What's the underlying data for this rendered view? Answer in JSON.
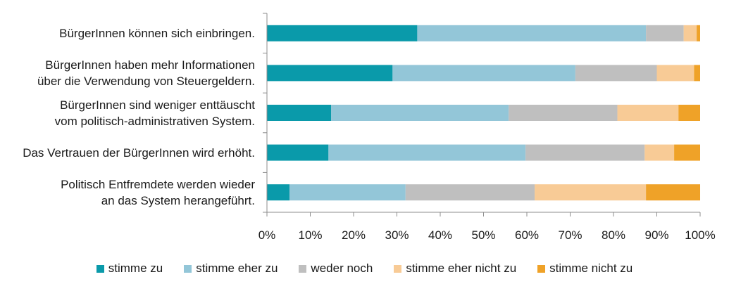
{
  "chart_data": {
    "type": "bar",
    "orientation": "horizontal",
    "stacked": "percent",
    "categories": [
      [
        "BürgerInnen können sich einbringen."
      ],
      [
        "BürgerInnen haben mehr Informationen",
        "über die Verwendung von Steuergeldern."
      ],
      [
        "BürgerInnen sind weniger enttäuscht",
        "vom politisch-administrativen System."
      ],
      [
        "Das Vertrauen der BürgerInnen wird erhöht."
      ],
      [
        "Politisch Entfremdete werden wieder",
        "an das System herangeführt."
      ]
    ],
    "series": [
      {
        "name": "stimme zu",
        "color": "#0A9AAA",
        "values": [
          34.7,
          29.0,
          14.8,
          14.2,
          5.2
        ]
      },
      {
        "name": "stimme eher zu",
        "color": "#93C6D8",
        "values": [
          52.8,
          42.2,
          41.0,
          45.5,
          26.8
        ]
      },
      {
        "name": "weder noch",
        "color": "#BFBFBF",
        "values": [
          8.7,
          18.8,
          25.1,
          27.5,
          29.8
        ]
      },
      {
        "name": "stimme eher nicht zu",
        "color": "#F8CB96",
        "values": [
          3.0,
          8.6,
          14.1,
          6.8,
          25.7
        ]
      },
      {
        "name": "stimme nicht zu",
        "color": "#EFA228",
        "values": [
          0.8,
          1.4,
          5.0,
          6.0,
          12.5
        ]
      }
    ],
    "xlim": [
      0,
      100
    ],
    "xticks": [
      "0%",
      "10%",
      "20%",
      "30%",
      "40%",
      "50%",
      "60%",
      "70%",
      "80%",
      "90%",
      "100%"
    ],
    "grid": false,
    "legend_position": "bottom"
  }
}
